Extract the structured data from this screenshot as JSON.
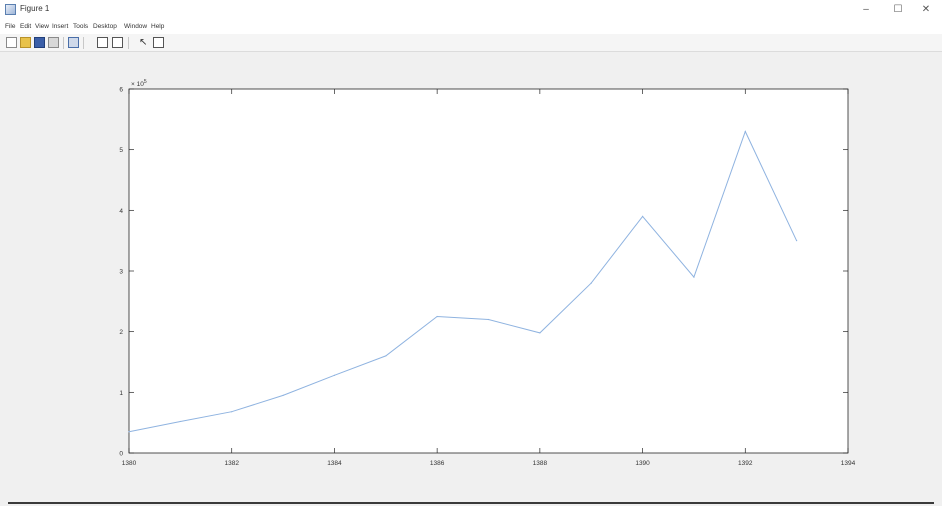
{
  "window": {
    "title": "Figure 1",
    "controls": {
      "minimize": "–",
      "maximize": "☐",
      "close": "✕"
    }
  },
  "menubar": {
    "items": [
      "File",
      "Edit",
      "View",
      "Insert",
      "Tools",
      "Desktop",
      "Window",
      "Help"
    ]
  },
  "toolbar": {
    "icons": [
      "new-figure-icon",
      "open-file-icon",
      "save-icon",
      "print-icon",
      "link-plot-icon",
      "insert-colorbar-icon",
      "insert-legend-icon",
      "edit-plot-icon",
      "show-plot-tools-icon"
    ]
  },
  "colors": {
    "line": "#8fb3e0",
    "axes_bg": "#ffffff",
    "figure_bg": "#f0f0f0",
    "axis": "#262626"
  },
  "chart_data": {
    "type": "line",
    "title": "",
    "xlabel": "",
    "ylabel": "",
    "exponent_label": "× 10^5",
    "xlim": [
      1380,
      1394
    ],
    "ylim": [
      0,
      6
    ],
    "xticks": [
      1380,
      1382,
      1384,
      1386,
      1388,
      1390,
      1392,
      1394
    ],
    "yticks": [
      0,
      1,
      2,
      3,
      4,
      5,
      6
    ],
    "grid": false,
    "series": [
      {
        "x": [
          1380,
          1381,
          1382,
          1383,
          1384,
          1385,
          1386,
          1387,
          1388,
          1389,
          1390,
          1391,
          1392,
          1393
        ],
        "values": [
          0.35,
          0.52,
          0.68,
          0.95,
          1.28,
          1.6,
          2.25,
          2.2,
          1.98,
          2.8,
          3.9,
          2.9,
          5.3,
          3.5
        ]
      }
    ]
  }
}
